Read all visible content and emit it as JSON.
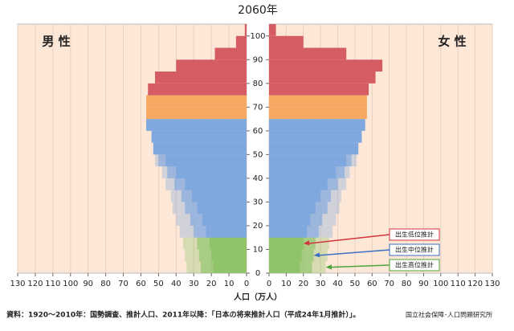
{
  "chart_data": {
    "type": "pyramid",
    "title": "2060年",
    "xlabel": "人口（万人）",
    "ylim": [
      0,
      105
    ],
    "yticks": [
      0,
      10,
      20,
      30,
      40,
      50,
      60,
      70,
      80,
      90,
      100
    ],
    "xlim": [
      0,
      130
    ],
    "xticks": [
      0,
      10,
      20,
      30,
      40,
      50,
      60,
      70,
      80,
      90,
      100,
      110,
      120,
      130
    ],
    "grid": true,
    "y": [
      0,
      5,
      10,
      15,
      20,
      25,
      30,
      35,
      40,
      45,
      50,
      55,
      60,
      65,
      70,
      75,
      80,
      85,
      90,
      95,
      100
    ],
    "bar_colors": [
      "#8fc46a",
      "#8fc46a",
      "#8fc46a",
      "#7fa8de",
      "#7fa8de",
      "#7fa8de",
      "#7fa8de",
      "#7fa8de",
      "#7fa8de",
      "#7fa8de",
      "#7fa8de",
      "#7fa8de",
      "#7fa8de",
      "#f7a964",
      "#f7a964",
      "#d45c62",
      "#d45c62",
      "#d45c62",
      "#d45c62",
      "#d45c62",
      "#d45c62"
    ],
    "panels": [
      {
        "label": "男 性",
        "side": "left",
        "series": [
          {
            "name": "出生高位推計",
            "color": "#4ea33a",
            "values": [
              34,
              35,
              36,
              38,
              40,
              42,
              43,
              46,
              48,
              52,
              null,
              null,
              null,
              null,
              null,
              null,
              null,
              null,
              null,
              null,
              null
            ]
          },
          {
            "name": "出生中位推計",
            "color": "#3b6fc2",
            "values": [
              26,
              27,
              28,
              30,
              32,
              35,
              37,
              41,
              45,
              50,
              53,
              54,
              57,
              57,
              57,
              56,
              52,
              40,
              18,
              6,
              1
            ]
          },
          {
            "name": "出生低位推計",
            "color": "#d0343c",
            "values": [
              19,
              20,
              21,
              23,
              25,
              28,
              31,
              35,
              40,
              46,
              null,
              null,
              null,
              null,
              null,
              null,
              null,
              null,
              null,
              null,
              null
            ]
          }
        ]
      },
      {
        "label": "女 性",
        "side": "right",
        "series": [
          {
            "name": "出生高位推計",
            "color": "#4ea33a",
            "values": [
              33,
              34,
              35,
              37,
              39,
              41,
              42,
              45,
              47,
              51,
              null,
              null,
              null,
              null,
              null,
              null,
              null,
              null,
              null,
              null,
              null
            ]
          },
          {
            "name": "出生中位推計",
            "color": "#3b6fc2",
            "values": [
              25,
              26,
              27,
              29,
              31,
              34,
              36,
              40,
              44,
              48,
              52,
              54,
              56,
              57,
              57,
              58,
              62,
              66,
              45,
              20,
              4
            ]
          },
          {
            "name": "出生低位推計",
            "color": "#d0343c",
            "values": [
              18,
              19,
              20,
              22,
              24,
              27,
              30,
              34,
              39,
              45,
              null,
              null,
              null,
              null,
              null,
              null,
              null,
              null,
              null,
              null,
              null
            ]
          }
        ]
      }
    ],
    "source": "資料：1920～2010年：国勢調査、推計人口、2011年以降：「日本の将来推計人口（平成24年1月推計）」。",
    "logo": "国立社会保障･人口問題研究所"
  }
}
